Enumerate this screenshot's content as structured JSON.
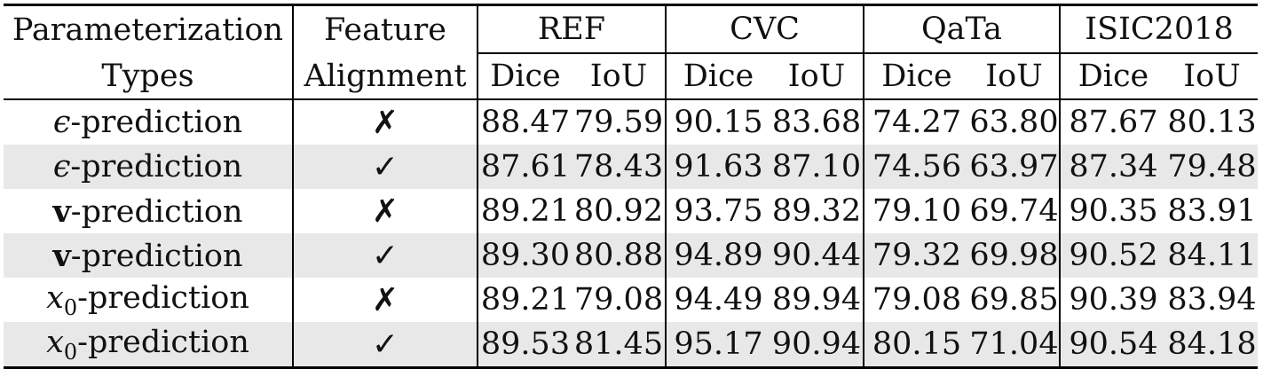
{
  "header": {
    "param_line1": "Parameterization",
    "param_line2": "Types",
    "feat_line1": "Feature",
    "feat_line2": "Alignment",
    "datasets": [
      "REF",
      "CVC",
      "QaTa",
      "ISIC2018"
    ],
    "metric_dice": "Dice",
    "metric_iou": "IoU"
  },
  "rows": [
    {
      "sym": "ϵ",
      "sym_style": "italic",
      "rest": "-prediction",
      "mark": "✗",
      "values": [
        "88.47",
        "79.59",
        "90.15",
        "83.68",
        "74.27",
        "63.80",
        "87.67",
        "80.13"
      ]
    },
    {
      "sym": "ϵ",
      "sym_style": "italic",
      "rest": "-prediction",
      "mark": "✓",
      "values": [
        "87.61",
        "78.43",
        "91.63",
        "87.10",
        "74.56",
        "63.97",
        "87.34",
        "79.48"
      ]
    },
    {
      "sym": "v",
      "sym_style": "bold",
      "rest": "-prediction",
      "mark": "✗",
      "values": [
        "89.21",
        "80.92",
        "93.75",
        "89.32",
        "79.10",
        "69.74",
        "90.35",
        "83.91"
      ]
    },
    {
      "sym": "v",
      "sym_style": "bold",
      "rest": "-prediction",
      "mark": "✓",
      "values": [
        "89.30",
        "80.88",
        "94.89",
        "90.44",
        "79.32",
        "69.98",
        "90.52",
        "84.11"
      ]
    },
    {
      "sym": "x",
      "sub": "0",
      "sym_style": "italic",
      "rest": "-prediction",
      "mark": "✗",
      "values": [
        "89.21",
        "79.08",
        "94.49",
        "89.94",
        "79.08",
        "69.85",
        "90.39",
        "83.94"
      ]
    },
    {
      "sym": "x",
      "sub": "0",
      "sym_style": "italic",
      "rest": "-prediction",
      "mark": "✓",
      "values": [
        "89.53",
        "81.45",
        "95.17",
        "90.94",
        "80.15",
        "71.04",
        "90.54",
        "84.18"
      ]
    }
  ]
}
